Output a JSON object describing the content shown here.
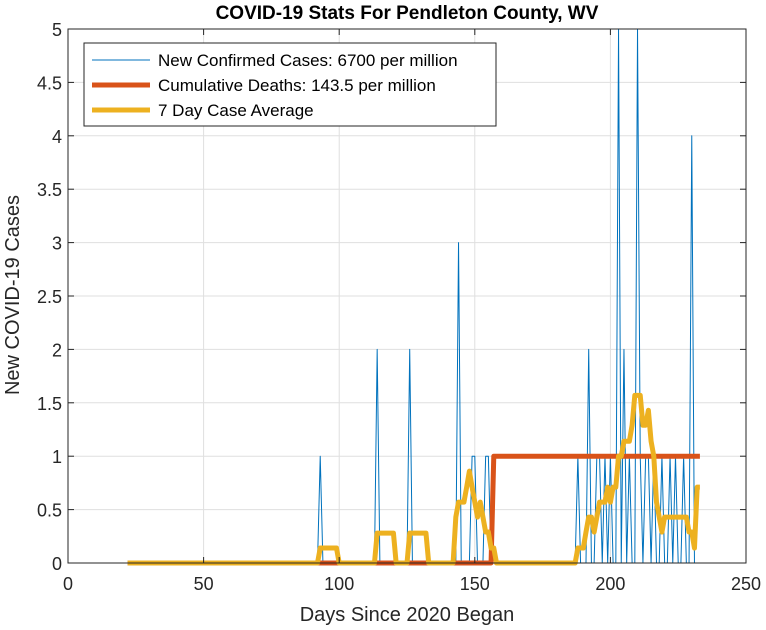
{
  "chart_data": {
    "type": "line",
    "title": "COVID-19 Stats For Pendleton County, WV",
    "xlabel": "Days Since 2020 Began",
    "ylabel": "New COVID-19 Cases",
    "xlim": [
      0,
      250
    ],
    "ylim": [
      0,
      5
    ],
    "xticks": [
      0,
      50,
      100,
      150,
      200,
      250
    ],
    "yticks": [
      0,
      0.5,
      1,
      1.5,
      2,
      2.5,
      3,
      3.5,
      4,
      4.5,
      5
    ],
    "xtick_labels": [
      "0",
      "50",
      "100",
      "150",
      "200",
      "250"
    ],
    "ytick_labels": [
      "0",
      "0.5",
      "1",
      "1.5",
      "2",
      "2.5",
      "3",
      "3.5",
      "4",
      "4.5",
      "5"
    ],
    "grid": true,
    "legend_position": "top-left",
    "series": [
      {
        "name": "New Confirmed Cases: 6700 per million",
        "color": "#0072BD",
        "line_style": "thin",
        "x": [
          22,
          92,
          93,
          94,
          113,
          114,
          115,
          125,
          126,
          127,
          143,
          144,
          145,
          148,
          149,
          150,
          151,
          153,
          154,
          155,
          156,
          157,
          187,
          188,
          189,
          191,
          192,
          193,
          194,
          195,
          196,
          197,
          198,
          199,
          200,
          201,
          202,
          203,
          204,
          205,
          206,
          207,
          208,
          209,
          210,
          211,
          212,
          213,
          214,
          215,
          216,
          217,
          218,
          219,
          220,
          221,
          222,
          223,
          224,
          225,
          226,
          227,
          228,
          229,
          230,
          231,
          232,
          233
        ],
        "y": [
          0,
          0,
          1,
          0,
          0,
          2,
          0,
          0,
          2,
          0,
          0,
          3,
          0,
          0,
          1,
          1,
          0,
          0,
          1,
          1,
          0,
          0,
          0,
          1,
          0,
          0,
          2,
          0,
          0,
          1,
          1,
          0,
          1,
          0,
          1,
          0,
          0,
          5,
          0,
          2,
          0,
          1,
          0,
          0,
          5,
          1,
          0,
          1,
          1,
          0,
          1,
          0,
          0,
          1,
          0,
          0,
          1,
          0,
          1,
          0,
          0,
          1,
          0,
          0,
          4,
          0,
          0,
          0
        ]
      },
      {
        "name": "Cumulative Deaths: 143.5 per million",
        "color": "#D95319",
        "line_style": "thick",
        "x": [
          22,
          155,
          156,
          157,
          233
        ],
        "y": [
          0,
          0,
          0,
          1,
          1
        ]
      },
      {
        "name": "7 Day Case Average",
        "color": "#EDB120",
        "line_style": "thick",
        "x": [
          22,
          92,
          93,
          99,
          100,
          113,
          114,
          120,
          121,
          125,
          126,
          132,
          133,
          142,
          143,
          144,
          145,
          146,
          147,
          148,
          149,
          150,
          151,
          152,
          153,
          154,
          155,
          156,
          157,
          158,
          159,
          160,
          187,
          188,
          189,
          190,
          191,
          192,
          193,
          194,
          195,
          196,
          197,
          198,
          199,
          200,
          201,
          202,
          203,
          204,
          205,
          206,
          207,
          208,
          209,
          210,
          211,
          212,
          213,
          214,
          215,
          216,
          217,
          218,
          219,
          220,
          221,
          222,
          223,
          224,
          225,
          226,
          227,
          228,
          229,
          230,
          231,
          232,
          233
        ],
        "y": [
          0,
          0,
          0.14,
          0.14,
          0,
          0,
          0.28,
          0.28,
          0,
          0,
          0.28,
          0.28,
          0,
          0,
          0.43,
          0.57,
          0.57,
          0.57,
          0.71,
          0.86,
          0.71,
          0.57,
          0.43,
          0.57,
          0.43,
          0.29,
          0.29,
          0.14,
          0.14,
          0,
          0,
          0,
          0,
          0.14,
          0.14,
          0.14,
          0.29,
          0.43,
          0.43,
          0.29,
          0.43,
          0.57,
          0.57,
          0.57,
          0.71,
          0.57,
          0.71,
          0.71,
          1.0,
          1.0,
          1.14,
          1.14,
          1.14,
          1.29,
          1.57,
          1.57,
          1.57,
          1.29,
          1.29,
          1.43,
          1.14,
          1.0,
          0.57,
          0.43,
          0.29,
          0.43,
          0.43,
          0.43,
          0.43,
          0.43,
          0.43,
          0.43,
          0.43,
          0.43,
          0.29,
          0.29,
          0.14,
          0.71,
          0.71
        ]
      }
    ]
  }
}
